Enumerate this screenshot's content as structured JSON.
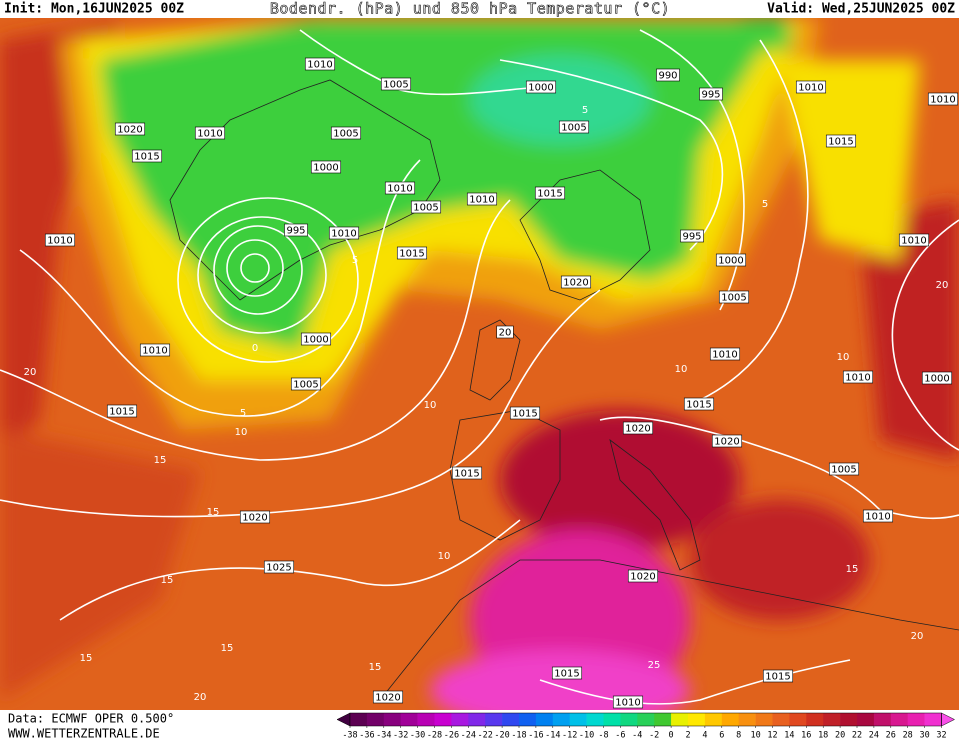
{
  "header": {
    "init": "Init: Mon,16JUN2025 00Z",
    "title": "Bodendr. (hPa) und 850 hPa Temperatur (°C)",
    "valid": "Valid: Wed,25JUN2025 00Z"
  },
  "footer": {
    "data": "Data: ECMWF OPER 0.500°",
    "site": "WWW.WETTERZENTRALE.DE"
  },
  "isobar_labels": [
    "1010",
    "1005",
    "1000",
    "990",
    "995",
    "1010",
    "1010",
    "1020",
    "1010",
    "1015",
    "1005",
    "1005",
    "1015",
    "1000",
    "1010",
    "1005",
    "1010",
    "1015",
    "995",
    "1010",
    "1015",
    "995",
    "1000",
    "1010",
    "1010",
    "1020",
    "1005",
    "1000",
    "1010",
    "1010",
    "1010",
    "1000",
    "1005",
    "1015",
    "1015",
    "1015",
    "1020",
    "1020",
    "1005",
    "1015",
    "1010",
    "1020",
    "1025",
    "1020",
    "1015",
    "1015",
    "1020",
    "1010",
    "20"
  ],
  "temperature_labels": [
    "0",
    "5",
    "10",
    "15",
    "15",
    "20",
    "10",
    "10",
    "15",
    "15",
    "15",
    "20",
    "15",
    "25",
    "20",
    "15",
    "10",
    "10",
    "5",
    "20",
    "5",
    "5"
  ],
  "colorbar": {
    "ticks": [
      -38,
      -36,
      -34,
      -32,
      -30,
      -28,
      -26,
      -24,
      -22,
      -20,
      -18,
      -16,
      -14,
      -12,
      -10,
      -8,
      -6,
      -4,
      -2,
      0,
      2,
      4,
      6,
      8,
      10,
      12,
      14,
      16,
      18,
      20,
      22,
      24,
      26,
      28,
      30,
      32
    ],
    "colors": [
      "#400040",
      "#5c0052",
      "#720068",
      "#88007e",
      "#a00098",
      "#b800b4",
      "#c800d0",
      "#a818e0",
      "#8028e8",
      "#5838ee",
      "#3048f0",
      "#1060f0",
      "#0080f0",
      "#00a0f0",
      "#00c0e8",
      "#00d8d0",
      "#00e0a8",
      "#10d880",
      "#28d058",
      "#40c830",
      "#e8f000",
      "#ffe800",
      "#ffc800",
      "#ffa800",
      "#f89010",
      "#f07818",
      "#e86020",
      "#e04820",
      "#d03020",
      "#c02028",
      "#b01030",
      "#a80840",
      "#c0106a",
      "#d81890",
      "#e820b0",
      "#f030d0",
      "#f850e8"
    ]
  }
}
